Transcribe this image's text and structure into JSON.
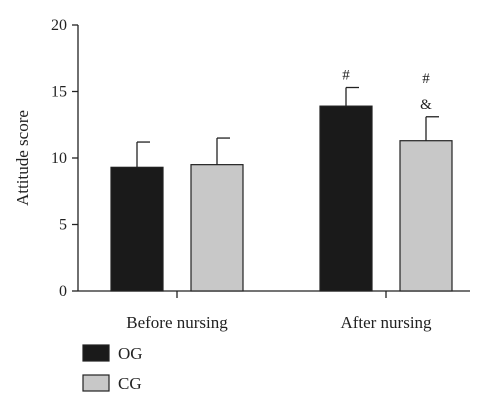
{
  "chart_data": {
    "type": "bar",
    "categories": [
      "Before nursing",
      "After nursing"
    ],
    "series": [
      {
        "name": "OG",
        "values": [
          9.3,
          13.9
        ],
        "errors": [
          1.9,
          1.4
        ],
        "color": "#1a1a1a"
      },
      {
        "name": "CG",
        "values": [
          9.5,
          11.3
        ],
        "errors": [
          2.0,
          1.8
        ],
        "color": "#c8c8c8"
      }
    ],
    "annotations": [
      {
        "category": 1,
        "series": 0,
        "text": "#"
      },
      {
        "category": 1,
        "series": 1,
        "text": "#"
      },
      {
        "category": 1,
        "series": 1,
        "text": "&"
      }
    ],
    "ylabel": "Attitude score",
    "xlabel": "",
    "ylim": [
      0,
      20
    ],
    "yticks": [
      0,
      5,
      10,
      15,
      20
    ],
    "grid": false,
    "legend": "bottom-left"
  }
}
